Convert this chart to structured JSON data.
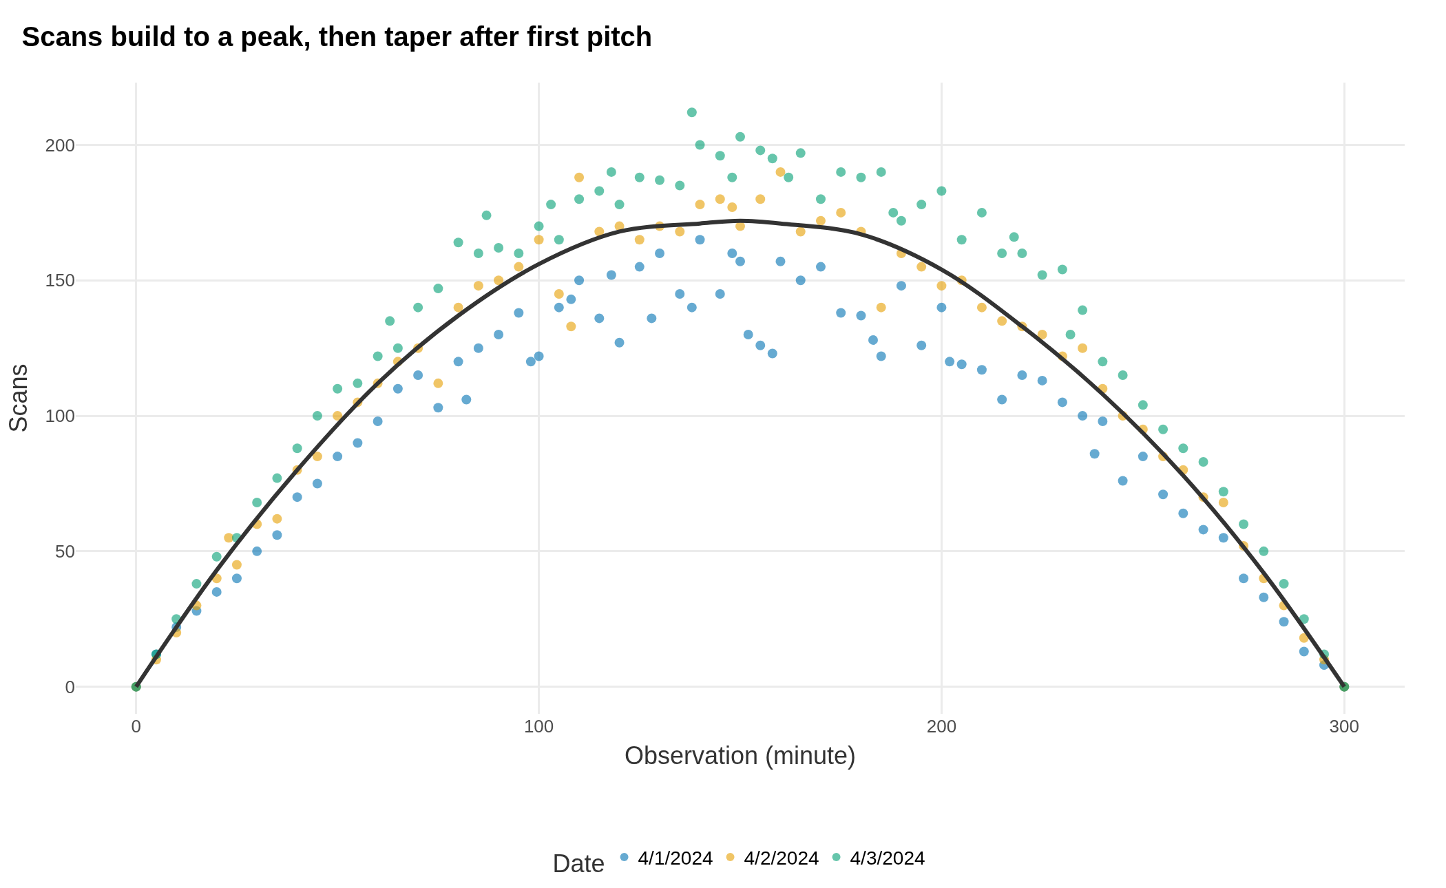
{
  "chart_data": {
    "type": "scatter",
    "title": "Scans build to a peak, then taper after first pitch",
    "xlabel": "Observation (minute)",
    "ylabel": "Scans",
    "legend_title": "Date",
    "xlim": [
      -15,
      315
    ],
    "xticks": [
      0,
      100,
      200,
      300
    ],
    "ylim": [
      -10,
      223
    ],
    "yticks": [
      0,
      50,
      100,
      150,
      200
    ],
    "grid": true,
    "legend": "bottom",
    "series": [
      {
        "name": "4/1/2024",
        "color": "#0072b2",
        "marker": "circle",
        "x": [
          0,
          5,
          10,
          15,
          20,
          25,
          30,
          35,
          40,
          45,
          50,
          55,
          60,
          65,
          70,
          75,
          80,
          82,
          85,
          90,
          95,
          98,
          100,
          105,
          108,
          110,
          115,
          118,
          120,
          125,
          128,
          130,
          135,
          138,
          140,
          145,
          148,
          150,
          152,
          155,
          158,
          160,
          165,
          170,
          175,
          180,
          183,
          185,
          190,
          195,
          200,
          202,
          205,
          210,
          215,
          220,
          225,
          230,
          235,
          238,
          240,
          245,
          250,
          255,
          260,
          265,
          270,
          275,
          280,
          285,
          290,
          295,
          300
        ],
        "values": [
          0,
          12,
          22,
          28,
          35,
          40,
          50,
          56,
          70,
          75,
          85,
          90,
          98,
          110,
          115,
          103,
          120,
          106,
          125,
          130,
          138,
          120,
          122,
          140,
          143,
          150,
          136,
          152,
          127,
          155,
          136,
          160,
          145,
          140,
          165,
          145,
          160,
          157,
          130,
          126,
          123,
          157,
          150,
          155,
          138,
          137,
          128,
          122,
          148,
          126,
          140,
          120,
          119,
          117,
          106,
          115,
          113,
          105,
          100,
          86,
          98,
          76,
          85,
          71,
          64,
          58,
          55,
          40,
          33,
          24,
          13,
          8,
          0
        ]
      },
      {
        "name": "4/2/2024",
        "color": "#e69f00",
        "marker": "circle",
        "x": [
          0,
          5,
          10,
          15,
          20,
          23,
          25,
          30,
          35,
          40,
          45,
          50,
          55,
          60,
          65,
          70,
          75,
          80,
          85,
          90,
          95,
          100,
          105,
          108,
          110,
          115,
          120,
          125,
          130,
          135,
          140,
          145,
          148,
          150,
          155,
          160,
          165,
          170,
          175,
          180,
          185,
          190,
          195,
          200,
          205,
          210,
          215,
          220,
          225,
          230,
          235,
          240,
          245,
          250,
          255,
          260,
          265,
          270,
          275,
          280,
          285,
          290,
          295,
          300
        ],
        "values": [
          0,
          10,
          20,
          30,
          40,
          55,
          45,
          60,
          62,
          80,
          85,
          100,
          105,
          112,
          120,
          125,
          112,
          140,
          148,
          150,
          155,
          165,
          145,
          133,
          188,
          168,
          170,
          165,
          170,
          168,
          178,
          180,
          177,
          170,
          180,
          190,
          168,
          172,
          175,
          168,
          140,
          160,
          155,
          148,
          150,
          140,
          135,
          133,
          130,
          122,
          125,
          110,
          100,
          95,
          85,
          80,
          70,
          68,
          52,
          40,
          30,
          18,
          10,
          0
        ]
      },
      {
        "name": "4/3/2024",
        "color": "#009e73",
        "marker": "circle",
        "x": [
          0,
          5,
          10,
          15,
          20,
          25,
          30,
          35,
          40,
          45,
          50,
          55,
          60,
          63,
          65,
          70,
          75,
          80,
          85,
          87,
          90,
          95,
          100,
          103,
          105,
          110,
          115,
          118,
          120,
          125,
          130,
          135,
          138,
          140,
          145,
          148,
          150,
          155,
          158,
          162,
          165,
          170,
          175,
          180,
          185,
          188,
          190,
          195,
          200,
          205,
          210,
          215,
          218,
          220,
          225,
          230,
          232,
          235,
          240,
          245,
          250,
          255,
          260,
          265,
          270,
          275,
          280,
          285,
          290,
          295,
          300
        ],
        "values": [
          0,
          12,
          25,
          38,
          48,
          55,
          68,
          77,
          88,
          100,
          110,
          112,
          122,
          135,
          125,
          140,
          147,
          164,
          160,
          174,
          162,
          160,
          170,
          178,
          165,
          180,
          183,
          190,
          178,
          188,
          187,
          185,
          212,
          200,
          196,
          188,
          203,
          198,
          195,
          188,
          197,
          180,
          190,
          188,
          190,
          175,
          172,
          178,
          183,
          165,
          175,
          160,
          166,
          160,
          152,
          154,
          130,
          139,
          120,
          115,
          104,
          95,
          88,
          83,
          72,
          60,
          50,
          38,
          25,
          12,
          0
        ]
      },
      {
        "type": "line",
        "color": "#333333",
        "x": [
          0,
          20,
          40,
          60,
          80,
          100,
          120,
          140,
          150,
          160,
          180,
          200,
          220,
          240,
          260,
          280,
          300
        ],
        "values": [
          0,
          43,
          80,
          112,
          137,
          156,
          168,
          171,
          172,
          171,
          167,
          154,
          133,
          108,
          78,
          42,
          0
        ]
      }
    ]
  }
}
